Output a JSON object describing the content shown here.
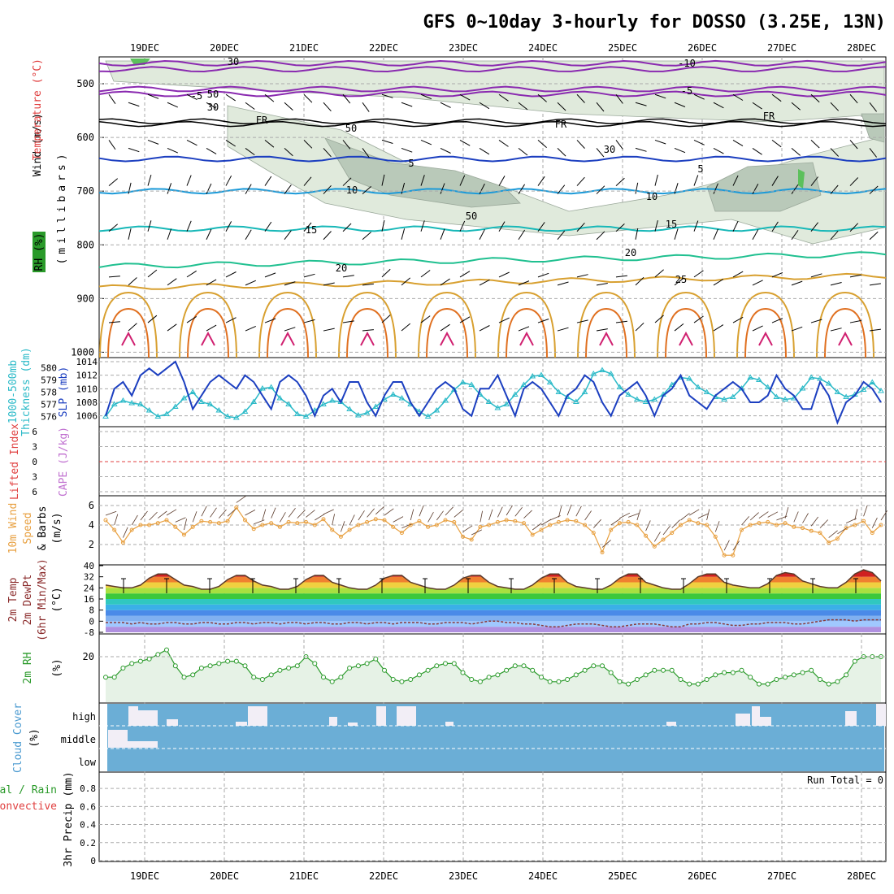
{
  "title": "GFS 0~10day 3-hourly for DOSSO (3.25E, 13N)",
  "dates": [
    "19DEC",
    "20DEC",
    "21DEC",
    "22DEC",
    "23DEC",
    "24DEC",
    "25DEC",
    "26DEC",
    "27DEC",
    "28DEC"
  ],
  "colors": {
    "slp": "#1c3fc0",
    "thickness": "#2bbac8",
    "wind10m": "#e8a040",
    "temp_line": "#5a3a2a",
    "rh": "#2a9a2a",
    "rh_fill": "#e6f2e6",
    "cloud": "#6baed6",
    "cloud_gap": "#f2eef6",
    "lifted_zero": "#e04040"
  },
  "panels": {
    "upper": {
      "ylabel": "(millibars)",
      "legend_wind": "Wind (m/s)",
      "legend_temp": "Temperature (°C)",
      "legend_rh": "RH (%)",
      "yticks": [
        "500",
        "600",
        "700",
        "800",
        "900",
        "1000"
      ],
      "contour_labels": [
        "-10",
        "-5",
        "-5",
        "FR",
        "FR",
        "FR",
        "5",
        "5",
        "10",
        "10",
        "15",
        "15",
        "20",
        "20",
        "25",
        "30",
        "30",
        "30",
        "50",
        "50",
        "50"
      ]
    },
    "slp": {
      "label_left": "1000-500mb",
      "label_left2": "Thickness (dm)",
      "label_right": "SLP (mb)",
      "thick_ticks": [
        "580",
        "579",
        "578",
        "577",
        "576"
      ],
      "slp_ticks": [
        "1014",
        "1012",
        "1010",
        "1008",
        "1006"
      ]
    },
    "lifted": {
      "label1": "Lifted Index",
      "label2": "CAPE (J/kg)",
      "yticks": [
        "6",
        "3",
        "0",
        "3",
        "6"
      ]
    },
    "wind10": {
      "label1": "10m Wind",
      "label2": "Speed",
      "label3": "& Barbs",
      "label4": "(m/s)",
      "yticks": [
        "6",
        "4",
        "2"
      ]
    },
    "temp": {
      "label1": "2m Temp",
      "label2": "2m DewPt",
      "label3": "(6hr Min/Max)",
      "label4": "(°C)",
      "yticks": [
        "40",
        "32",
        "24",
        "16",
        "8",
        "0",
        "-8"
      ]
    },
    "rh2m": {
      "label1": "2m RH",
      "label2": "(%)",
      "yticks": [
        "20"
      ]
    },
    "cloud": {
      "label1": "Cloud Cover",
      "label2": "(%)",
      "levels": [
        "high",
        "middle",
        "low"
      ]
    },
    "precip": {
      "label1": "Total / Rain",
      "label2": "Convective",
      "label3": "3hr Precip (mm)",
      "run_total": "Run Total = 0",
      "yticks": [
        "0.8",
        "0.6",
        "0.4",
        "0.2",
        "0"
      ]
    }
  },
  "chart_data": [
    {
      "type": "line",
      "name": "SLP (mb)",
      "x_unit": "3-hour steps from 18DEC 12Z",
      "ylim": [
        1005,
        1014
      ],
      "values": [
        1006,
        1010,
        1011,
        1009,
        1012,
        1013,
        1012,
        1013,
        1014,
        1011,
        1007,
        1009,
        1011,
        1012,
        1011,
        1010,
        1012,
        1011,
        1009,
        1007,
        1011,
        1012,
        1011,
        1009,
        1006,
        1009,
        1010,
        1008,
        1011,
        1011,
        1008,
        1006,
        1009,
        1011,
        1011,
        1008,
        1006,
        1008,
        1010,
        1011,
        1010,
        1007,
        1006,
        1010,
        1010,
        1012,
        1009,
        1006,
        1010,
        1011,
        1010,
        1008,
        1006,
        1009,
        1010,
        1012,
        1011,
        1008,
        1006,
        1009,
        1010,
        1011,
        1009,
        1006,
        1009,
        1010,
        1012,
        1009,
        1008,
        1007,
        1009,
        1010,
        1011,
        1010,
        1008,
        1008,
        1009,
        1012,
        1010,
        1009,
        1007,
        1007,
        1011,
        1009,
        1005,
        1008,
        1009,
        1011,
        1010,
        1008
      ]
    },
    {
      "type": "line",
      "name": "1000-500mb Thickness (dm)",
      "ylim": [
        575.5,
        580.5
      ],
      "values": [
        576,
        577,
        577.3,
        577.1,
        577,
        576.5,
        576,
        576.2,
        576.8,
        577.5,
        578,
        577.2,
        577,
        576.5,
        576,
        575.9,
        576.4,
        577.2,
        578.3,
        578.4,
        577.5,
        577,
        576.2,
        576,
        576.5,
        577,
        577.3,
        577.2,
        576.6,
        576.1,
        576.3,
        576.8,
        577.4,
        577.8,
        577.5,
        577,
        576.4,
        576,
        576.5,
        577.3,
        578.2,
        578.8,
        578.6,
        577.8,
        577.2,
        576.7,
        577,
        577.8,
        578.6,
        579.3,
        579.4,
        578.8,
        578,
        577.6,
        577.2,
        578,
        579.5,
        579.8,
        579.5,
        578.4,
        577.8,
        577.4,
        577.2,
        577.4,
        577.8,
        578.6,
        579.2,
        579.1,
        578.4,
        578,
        577.6,
        577.4,
        577.6,
        578.3,
        579.2,
        579,
        578.4,
        577.6,
        577.4,
        577.5,
        578.3,
        579.2,
        579.1,
        578.7,
        578,
        577.6,
        577.8,
        578.2,
        578.8,
        578.1
      ]
    },
    {
      "type": "line",
      "name": "10m Wind Speed (m/s)",
      "ylim": [
        0,
        6
      ],
      "values": [
        4.5,
        3.5,
        2.2,
        3.5,
        4,
        4,
        4.2,
        4.5,
        3.8,
        3,
        3.8,
        4.4,
        4.3,
        4.2,
        4.4,
        5.8,
        4.5,
        3.6,
        4,
        4.2,
        3.8,
        4.3,
        4.2,
        4.3,
        4,
        4.6,
        3.5,
        2.8,
        3.5,
        4,
        4.3,
        4.6,
        4.5,
        3.8,
        3.2,
        4,
        4.4,
        3.8,
        4,
        4.5,
        4.3,
        2.8,
        2.5,
        3.8,
        4,
        4.3,
        4.5,
        4.4,
        4.2,
        3,
        3.5,
        4,
        4.3,
        4.5,
        4.4,
        4,
        3.2,
        1.2,
        3.5,
        4.2,
        4.3,
        4,
        2.9,
        1.8,
        2.5,
        3.2,
        4,
        4.5,
        4.2,
        4,
        2.8,
        0.9,
        0.9,
        3.5,
        4,
        4.2,
        4.3,
        4,
        4.2,
        3.8,
        3.7,
        3.4,
        3.2,
        2.2,
        2.6,
        3.7,
        4,
        4.4,
        3.2,
        4
      ]
    },
    {
      "type": "area",
      "name": "2m Temp (°C)",
      "ylim": [
        -8,
        40
      ],
      "values": [
        26,
        25,
        24,
        24,
        26,
        31,
        34,
        34,
        30,
        26,
        25,
        23,
        23,
        25,
        30,
        33,
        33,
        29,
        26,
        25,
        23,
        23,
        25,
        30,
        33,
        33,
        28,
        26,
        24,
        23,
        23,
        26,
        31,
        33,
        33,
        28,
        26,
        24,
        23,
        23,
        26,
        31,
        33,
        33,
        28,
        25,
        24,
        23,
        23,
        26,
        31,
        34,
        34,
        28,
        25,
        24,
        23,
        23,
        26,
        31,
        34,
        34,
        28,
        26,
        24,
        23,
        23,
        27,
        32,
        34,
        34,
        28,
        26,
        25,
        24,
        24,
        27,
        33,
        35,
        34,
        29,
        27,
        25,
        24,
        24,
        28,
        34,
        37,
        35,
        29
      ]
    },
    {
      "type": "line",
      "name": "2m DewPt (°C)",
      "ylim": [
        -8,
        40
      ],
      "values": [
        -1,
        -1,
        -1,
        -2,
        -1,
        -2,
        -2,
        -1,
        -1,
        -2,
        -2,
        -1,
        -1,
        -2,
        -2,
        -1,
        -1,
        -2,
        -1,
        -1,
        -2,
        -1,
        -1,
        -2,
        -1,
        -1,
        -2,
        -2,
        -1,
        -1,
        -2,
        -1,
        -1,
        -2,
        -1,
        -1,
        -1,
        -2,
        -2,
        -1,
        -1,
        -1,
        -2,
        -1,
        0,
        0,
        -1,
        -1,
        -2,
        -2,
        -3,
        -4,
        -4,
        -3,
        -2,
        -2,
        -2,
        -3,
        -4,
        -4,
        -3,
        -2,
        -2,
        -2,
        -3,
        -4,
        -4,
        -2,
        -2,
        -1,
        -1,
        -2,
        -3,
        -3,
        -2,
        -2,
        -1,
        -1,
        -1,
        -2,
        -2,
        -1,
        0,
        1,
        1,
        1,
        0,
        1,
        1,
        1
      ]
    },
    {
      "type": "line",
      "name": "2m RH (%)",
      "ylim": [
        0,
        30
      ],
      "values": [
        11,
        11,
        15,
        17,
        18,
        19,
        21,
        23,
        16,
        11,
        12,
        15,
        16,
        17,
        18,
        18,
        16,
        11,
        10,
        12,
        14,
        15,
        16,
        20,
        17,
        11,
        9,
        11,
        15,
        16,
        17,
        19,
        14,
        10,
        9,
        10,
        12,
        14,
        16,
        17,
        17,
        13,
        10,
        9,
        11,
        12,
        14,
        16,
        16,
        14,
        11,
        9,
        9,
        10,
        12,
        14,
        16,
        16,
        13,
        9,
        8,
        10,
        12,
        14,
        14,
        14,
        10,
        8,
        8,
        10,
        12,
        13,
        13,
        14,
        11,
        8,
        8,
        10,
        11,
        12,
        13,
        14,
        10,
        8,
        9,
        12,
        18,
        20,
        20,
        20
      ]
    },
    {
      "type": "bar",
      "name": "3hr Precip (mm)",
      "ylim": [
        0,
        1
      ],
      "values": [
        0,
        0,
        0,
        0,
        0,
        0,
        0,
        0,
        0,
        0
      ],
      "categories": [
        "19DEC",
        "20DEC",
        "21DEC",
        "22DEC",
        "23DEC",
        "24DEC",
        "25DEC",
        "26DEC",
        "27DEC",
        "28DEC"
      ],
      "run_total": 0
    }
  ]
}
